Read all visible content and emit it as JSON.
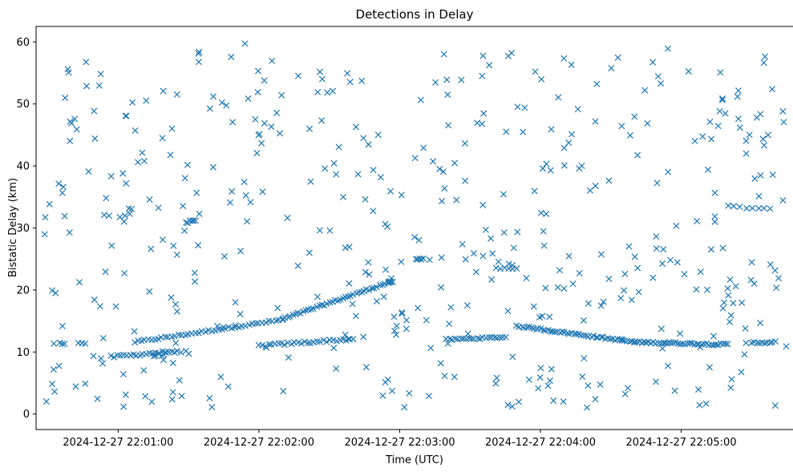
{
  "chart_data": {
    "type": "scatter",
    "title": "Detections in Delay",
    "xlabel": "Time (UTC)",
    "ylabel": "Bistatic Delay (km)",
    "x_axis_kind": "time",
    "xlim": [
      "2024-12-27 22:00:25",
      "2024-12-27 22:05:48"
    ],
    "ylim": [
      -2.5,
      62.5
    ],
    "grid": false,
    "marker": "x",
    "color": "#1f77b4",
    "x_ticks": [
      {
        "value": "2024-12-27 22:01:00",
        "label": "2024-12-27 22:01:00"
      },
      {
        "value": "2024-12-27 22:02:00",
        "label": "2024-12-27 22:02:00"
      },
      {
        "value": "2024-12-27 22:03:00",
        "label": "2024-12-27 22:03:00"
      },
      {
        "value": "2024-12-27 22:04:00",
        "label": "2024-12-27 22:04:00"
      },
      {
        "value": "2024-12-27 22:05:00",
        "label": "2024-12-27 22:05:00"
      }
    ],
    "y_ticks": [
      0,
      10,
      20,
      30,
      40,
      50,
      60
    ],
    "tracks": [
      {
        "kind": "line",
        "x0": "2024-12-27 22:01:07",
        "y0": 11.6,
        "x1": "2024-12-27 22:02:10",
        "y1": 15.2,
        "n": 45,
        "jitter_x": 0.3,
        "jitter_y": 0.15
      },
      {
        "kind": "line",
        "x0": "2024-12-27 22:02:10",
        "y0": 15.3,
        "x1": "2024-12-27 22:02:56",
        "y1": 21.3,
        "n": 42,
        "jitter_x": 0.3,
        "jitter_y": 0.15
      },
      {
        "kind": "line",
        "x0": "2024-12-27 22:00:57",
        "y0": 9.2,
        "x1": "2024-12-27 22:01:20",
        "y1": 10.0,
        "n": 18,
        "jitter_x": 0.3,
        "jitter_y": 0.2
      },
      {
        "kind": "line",
        "x0": "2024-12-27 22:01:15",
        "y0": 9.4,
        "x1": "2024-12-27 22:01:25",
        "y1": 10.0,
        "n": 10,
        "jitter_x": 0.3,
        "jitter_y": 0.2
      },
      {
        "kind": "line",
        "x0": "2024-12-27 22:02:00",
        "y0": 11.0,
        "x1": "2024-12-27 22:02:40",
        "y1": 12.1,
        "n": 30,
        "jitter_x": 0.3,
        "jitter_y": 0.2
      },
      {
        "kind": "line",
        "x0": "2024-12-27 22:03:20",
        "y0": 12.0,
        "x1": "2024-12-27 22:03:45",
        "y1": 12.4,
        "n": 22,
        "jitter_x": 0.3,
        "jitter_y": 0.12
      },
      {
        "kind": "line",
        "x0": "2024-12-27 22:03:50",
        "y0": 14.2,
        "x1": "2024-12-27 22:04:40",
        "y1": 11.6,
        "n": 50,
        "jitter_x": 0.3,
        "jitter_y": 0.15
      },
      {
        "kind": "line",
        "x0": "2024-12-27 22:04:40",
        "y0": 11.6,
        "x1": "2024-12-27 22:05:20",
        "y1": 11.2,
        "n": 40,
        "jitter_x": 0.3,
        "jitter_y": 0.15
      },
      {
        "kind": "line",
        "x0": "2024-12-27 22:05:30",
        "y0": 11.5,
        "x1": "2024-12-27 22:05:40",
        "y1": 11.6,
        "n": 10,
        "jitter_x": 0.3,
        "jitter_y": 0.15
      },
      {
        "kind": "line",
        "x0": "2024-12-27 22:05:20",
        "y0": 33.5,
        "x1": "2024-12-27 22:05:38",
        "y1": 33.0,
        "n": 8,
        "jitter_x": 0.3,
        "jitter_y": 0.15
      },
      {
        "kind": "line",
        "x0": "2024-12-27 22:03:41",
        "y0": 23.5,
        "x1": "2024-12-27 22:03:50",
        "y1": 23.5,
        "n": 6,
        "jitter_x": 0.2,
        "jitter_y": 0.1
      },
      {
        "kind": "line",
        "x0": "2024-12-27 22:02:55",
        "y0": 21.3,
        "x1": "2024-12-27 22:02:57",
        "y1": 21.3,
        "n": 4,
        "jitter_x": 0.2,
        "jitter_y": 0.1
      },
      {
        "kind": "line",
        "x0": "2024-12-27 22:03:07",
        "y0": 25.0,
        "x1": "2024-12-27 22:03:10",
        "y1": 25.0,
        "n": 5,
        "jitter_x": 0.2,
        "jitter_y": 0.1
      },
      {
        "kind": "line",
        "x0": "2024-12-27 22:01:29",
        "y0": 30.8,
        "x1": "2024-12-27 22:01:33",
        "y1": 31.2,
        "n": 6,
        "jitter_x": 0.2,
        "jitter_y": 0.2
      },
      {
        "kind": "line",
        "x0": "2024-12-27 22:00:35",
        "y0": 11.4,
        "x1": "2024-12-27 22:00:37",
        "y1": 11.4,
        "n": 3,
        "jitter_x": 0.1,
        "jitter_y": 0.1
      },
      {
        "kind": "line",
        "x0": "2024-12-27 22:00:43",
        "y0": 11.4,
        "x1": "2024-12-27 22:00:46",
        "y1": 11.4,
        "n": 3,
        "jitter_x": 0.1,
        "jitter_y": 0.1
      }
    ],
    "noise": {
      "n": 470,
      "x_range": [
        "2024-12-27 22:00:28",
        "2024-12-27 22:05:45"
      ],
      "y_range": [
        1,
        60
      ]
    },
    "notes_series": "scattered random detections plus several near-linear tracks"
  }
}
